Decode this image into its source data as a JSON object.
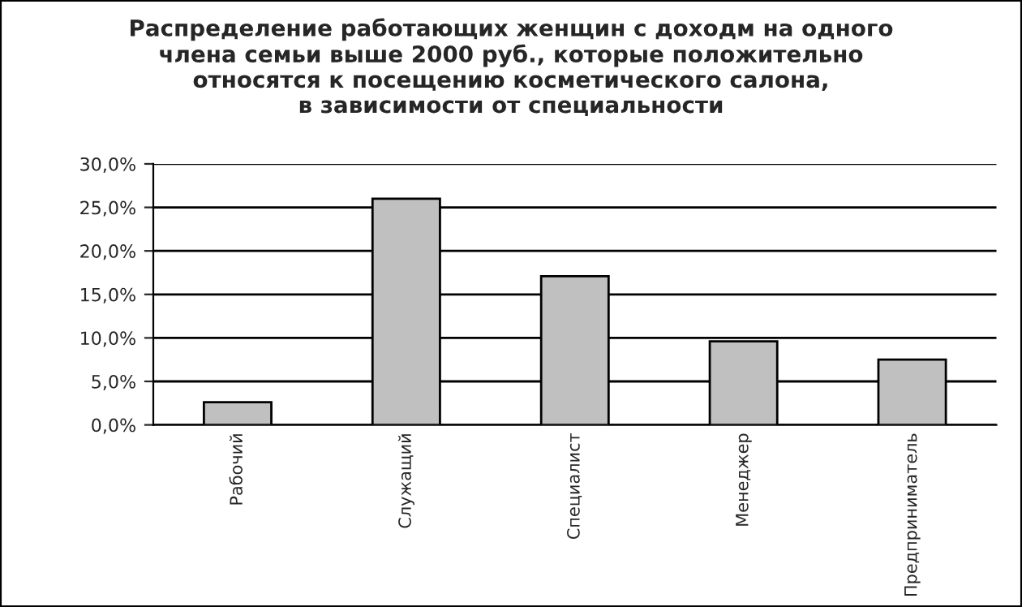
{
  "chart_data": {
    "type": "bar",
    "title": "Распределение работающих женщин с доходм на одного\nчлена семьи выше 2000 руб., которые положительно\nотносятся к посещению косметического салона,\nв зависимости от специальности",
    "categories": [
      "Рабочий",
      "Служащий",
      "Специалист",
      "Менеджер",
      "Предприниматель"
    ],
    "values": [
      2.6,
      26.0,
      17.1,
      9.6,
      7.5
    ],
    "color": "#c0c0c0",
    "ylim": [
      0,
      30
    ],
    "yticks": [
      {
        "value": 0,
        "label": "0,0%"
      },
      {
        "value": 5,
        "label": "5,0%"
      },
      {
        "value": 10,
        "label": "10,0%"
      },
      {
        "value": 15,
        "label": "15,0%"
      },
      {
        "value": 20,
        "label": "20,0%"
      },
      {
        "value": 25,
        "label": "25,0%"
      },
      {
        "value": 30,
        "label": "30,0%"
      }
    ],
    "grid": "y"
  }
}
